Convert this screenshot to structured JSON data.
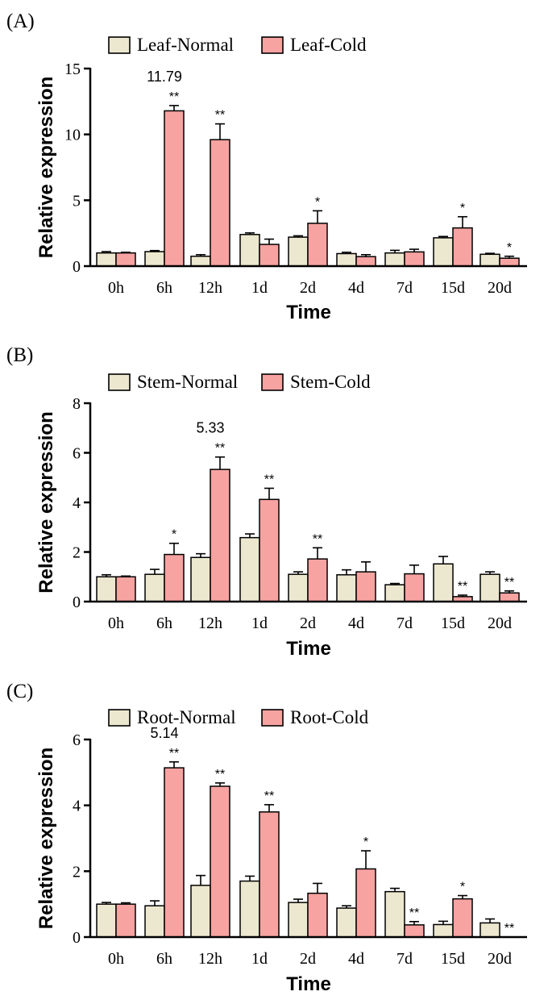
{
  "chart_data": [
    {
      "type": "bar",
      "panel": "(A)",
      "categories": [
        "0h",
        "6h",
        "12h",
        "1d",
        "2d",
        "4d",
        "7d",
        "15d",
        "20d"
      ],
      "xlabel": "Time",
      "ylabel": "Relative expression",
      "ylim": [
        0,
        15
      ],
      "yticks": [
        0,
        5,
        10,
        15
      ],
      "legend_position": "top-left",
      "peak_label": {
        "category": "6h",
        "text": "11.79"
      },
      "series": [
        {
          "name": "Leaf-Normal",
          "color": "#ece7cf",
          "values": [
            1.0,
            1.1,
            0.75,
            2.4,
            2.2,
            0.95,
            1.0,
            2.15,
            0.9
          ],
          "errors": [
            0.1,
            0.08,
            0.12,
            0.12,
            0.1,
            0.1,
            0.2,
            0.1,
            0.07
          ],
          "sig": [
            "",
            "",
            "",
            "",
            "",
            "",
            "",
            "",
            ""
          ]
        },
        {
          "name": "Leaf-Cold",
          "color": "#f7a3a1",
          "values": [
            1.0,
            11.79,
            9.6,
            1.65,
            3.25,
            0.72,
            1.08,
            2.9,
            0.6
          ],
          "errors": [
            0.05,
            0.4,
            1.2,
            0.4,
            0.95,
            0.15,
            0.2,
            0.85,
            0.15
          ],
          "sig": [
            "",
            "**",
            "**",
            "",
            "*",
            "",
            "",
            "*",
            "*"
          ]
        }
      ]
    },
    {
      "type": "bar",
      "panel": "(B)",
      "categories": [
        "0h",
        "6h",
        "12h",
        "1d",
        "2d",
        "4d",
        "7d",
        "15d",
        "20d"
      ],
      "xlabel": "Time",
      "ylabel": "Relative expression",
      "ylim": [
        0,
        8
      ],
      "yticks": [
        0,
        2,
        4,
        6,
        8
      ],
      "legend_position": "top-left",
      "peak_label": {
        "category": "12h",
        "text": "5.33"
      },
      "series": [
        {
          "name": "Stem-Normal",
          "color": "#ece7cf",
          "values": [
            1.0,
            1.1,
            1.78,
            2.58,
            1.1,
            1.08,
            0.68,
            1.52,
            1.1
          ],
          "errors": [
            0.08,
            0.2,
            0.15,
            0.15,
            0.1,
            0.2,
            0.05,
            0.3,
            0.1
          ],
          "sig": [
            "",
            "",
            "",
            "",
            "",
            "",
            "",
            "",
            ""
          ]
        },
        {
          "name": "Stem-Cold",
          "color": "#f7a3a1",
          "values": [
            1.0,
            1.9,
            5.33,
            4.12,
            1.72,
            1.2,
            1.12,
            0.2,
            0.35
          ],
          "errors": [
            0.03,
            0.45,
            0.5,
            0.45,
            0.45,
            0.4,
            0.35,
            0.06,
            0.08
          ],
          "sig": [
            "",
            "*",
            "**",
            "**",
            "**",
            "",
            "",
            "**",
            "**"
          ]
        }
      ]
    },
    {
      "type": "bar",
      "panel": "(C)",
      "categories": [
        "0h",
        "6h",
        "12h",
        "1d",
        "2d",
        "4d",
        "7d",
        "15d",
        "20d"
      ],
      "xlabel": "Time",
      "ylabel": "Relative expression",
      "ylim": [
        0,
        6
      ],
      "yticks": [
        0,
        2,
        4,
        6
      ],
      "legend_position": "top-left",
      "peak_label": {
        "category": "6h",
        "text": "5.14"
      },
      "series": [
        {
          "name": "Root-Normal",
          "color": "#ece7cf",
          "values": [
            1.0,
            0.95,
            1.57,
            1.7,
            1.05,
            0.88,
            1.38,
            0.38,
            0.43
          ],
          "errors": [
            0.05,
            0.15,
            0.3,
            0.15,
            0.1,
            0.07,
            0.1,
            0.1,
            0.12
          ],
          "sig": [
            "",
            "",
            "",
            "",
            "",
            "",
            "",
            "",
            ""
          ]
        },
        {
          "name": "Root-Cold",
          "color": "#f7a3a1",
          "values": [
            1.0,
            5.14,
            4.58,
            3.8,
            1.33,
            2.07,
            0.37,
            1.16,
            0.0
          ],
          "errors": [
            0.04,
            0.18,
            0.1,
            0.22,
            0.3,
            0.55,
            0.1,
            0.1,
            0.0
          ],
          "sig": [
            "",
            "**",
            "**",
            "**",
            "",
            "*",
            "**",
            "*",
            "**"
          ]
        }
      ]
    }
  ]
}
